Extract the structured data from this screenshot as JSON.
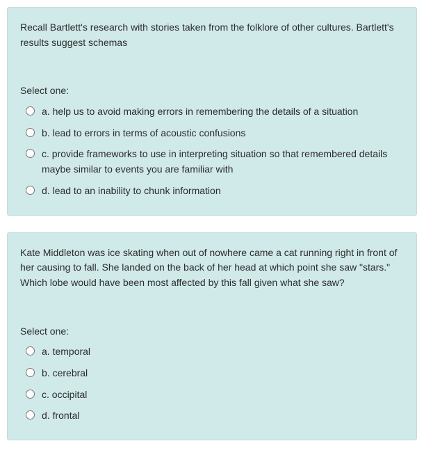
{
  "colors": {
    "card_bg": "#d0e9e9",
    "card_border": "#c0dcdc",
    "text": "#2c2c2c",
    "page_bg": "#ffffff"
  },
  "questions": [
    {
      "text": "Recall Bartlett's research with stories taken from the folklore of other cultures. Bartlett's results suggest schemas",
      "select_label": "Select one:",
      "options": [
        {
          "letter": "a.",
          "text": "help us to avoid making errors in remembering the details of a situation"
        },
        {
          "letter": "b.",
          "text": "lead to errors in terms of acoustic confusions"
        },
        {
          "letter": "c.",
          "text": "provide frameworks to use in interpreting situation so that remembered details maybe similar to events you are familiar with"
        },
        {
          "letter": "d.",
          "text": "lead to an inability to chunk information"
        }
      ]
    },
    {
      "text": "Kate Middleton was ice skating when out of nowhere came a cat running right in front of her causing to fall. She landed on the back of her head at which point she saw \"stars.\"  Which lobe would have been most affected by this fall given what she saw?",
      "select_label": "Select one:",
      "options": [
        {
          "letter": "a.",
          "text": "temporal"
        },
        {
          "letter": "b.",
          "text": "cerebral"
        },
        {
          "letter": "c.",
          "text": "occipital"
        },
        {
          "letter": "d.",
          "text": "frontal"
        }
      ]
    }
  ]
}
